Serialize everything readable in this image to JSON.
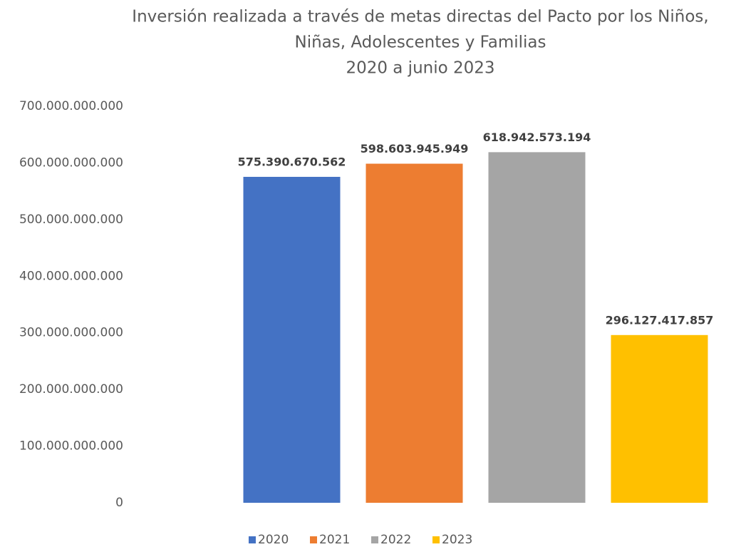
{
  "chart_data": {
    "type": "bar",
    "title": [
      "Inversión realizada a través de metas directas del Pacto por los Niños,",
      "Niñas, Adolescentes y Familias",
      "2020 a junio 2023"
    ],
    "categories": [
      null
    ],
    "series": [
      {
        "name": "2020",
        "color": "#4472c4",
        "values": [
          575390670562
        ],
        "value_labels": [
          "575.390.670.562"
        ]
      },
      {
        "name": "2021",
        "color": "#ed7d31",
        "values": [
          598603945949
        ],
        "value_labels": [
          "598.603.945.949"
        ]
      },
      {
        "name": "2022",
        "color": "#a5a5a5",
        "values": [
          618942573194
        ],
        "value_labels": [
          "618.942.573.194"
        ]
      },
      {
        "name": "2023",
        "color": "#ffc000",
        "values": [
          296127417857
        ],
        "value_labels": [
          "296.127.417.857"
        ]
      }
    ],
    "ylim": [
      0,
      700000000000
    ],
    "yticks": [
      0,
      {
        "value": 100000000000,
        "label": "100.000.000.000"
      },
      {
        "value": 200000000000,
        "label": "200.000.000.000"
      },
      {
        "value": 300000000000,
        "label": "300.000.000.000"
      },
      {
        "value": 400000000000,
        "label": "400.000.000.000"
      },
      {
        "value": 500000000000,
        "label": "500.000.000.000"
      },
      {
        "value": 600000000000,
        "label": "600.000.000.000"
      },
      {
        "value": 700000000000,
        "label": "700.000.000.000"
      }
    ],
    "grid": false,
    "legend": "bottom"
  }
}
